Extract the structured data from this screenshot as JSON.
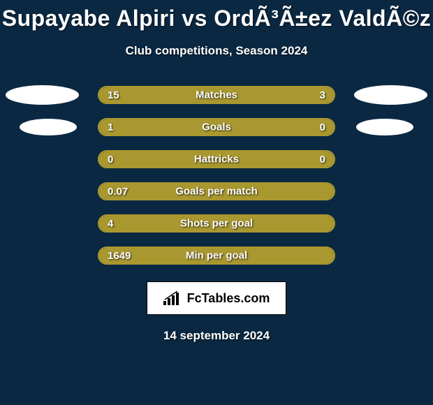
{
  "title": "Supayabe Alpiri vs OrdÃ³Ã±ez ValdÃ©z",
  "subtitle": "Club competitions, Season 2024",
  "date": "14 september 2024",
  "logo_text": "FcTables.com",
  "colors": {
    "background": "#0a2842",
    "bar_fill": "#a9982f",
    "bar_border": "#a9982f",
    "text": "#ffffff",
    "ellipse": "#ffffff",
    "logo_bg": "#ffffff",
    "logo_text": "#000000"
  },
  "stats": [
    {
      "label": "Matches",
      "left_value": "15",
      "right_value": "3",
      "left_pct": 78,
      "right_pct": 22,
      "left_color": "#a9982f",
      "right_color": "#a9982f",
      "show_ellipse": true
    },
    {
      "label": "Goals",
      "left_value": "1",
      "right_value": "0",
      "left_pct": 80,
      "right_pct": 20,
      "left_color": "#a9982f",
      "right_color": "#a9982f",
      "show_ellipse": true
    },
    {
      "label": "Hattricks",
      "left_value": "0",
      "right_value": "0",
      "left_pct": 100,
      "right_pct": 0,
      "left_color": "#a9982f",
      "right_color": "#a9982f",
      "show_ellipse": false
    },
    {
      "label": "Goals per match",
      "left_value": "0.07",
      "right_value": "",
      "left_pct": 100,
      "right_pct": 0,
      "left_color": "#a9982f",
      "right_color": "#a9982f",
      "show_ellipse": false
    },
    {
      "label": "Shots per goal",
      "left_value": "4",
      "right_value": "",
      "left_pct": 100,
      "right_pct": 0,
      "left_color": "#a9982f",
      "right_color": "#a9982f",
      "show_ellipse": false
    },
    {
      "label": "Min per goal",
      "left_value": "1649",
      "right_value": "",
      "left_pct": 100,
      "right_pct": 0,
      "left_color": "#a9982f",
      "right_color": "#a9982f",
      "show_ellipse": false
    }
  ]
}
